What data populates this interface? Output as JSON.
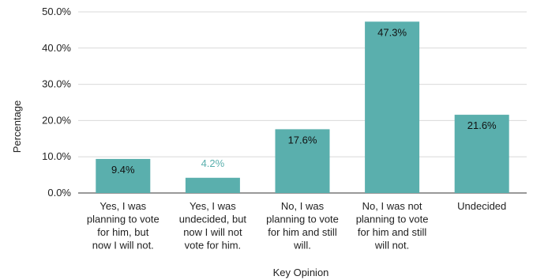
{
  "chart_data": {
    "type": "bar",
    "title": "",
    "xlabel": "Key Opinion",
    "ylabel": "Percentage",
    "ylim": [
      0,
      50
    ],
    "yticks": [
      "0.0%",
      "10.0%",
      "20.0%",
      "30.0%",
      "40.0%",
      "50.0%"
    ],
    "grid": true,
    "legend": "none",
    "categories": [
      "Yes, I was planning to vote for him, but now I will not.",
      "Yes, I was undecided, but now I will not vote for him.",
      "No, I was planning to vote for him and still will.",
      "No, I was not planning to vote for him and still will not.",
      "Undecided"
    ],
    "category_lines": [
      [
        "Yes, I was",
        "planning to vote",
        "for him, but",
        "now I will not."
      ],
      [
        "Yes, I was",
        "undecided, but",
        "now I will not",
        "vote for him."
      ],
      [
        "No, I was",
        "planning to vote",
        "for him and still",
        "will."
      ],
      [
        "No, I was not",
        "planning to vote",
        "for him and still",
        "will not."
      ],
      [
        "Undecided"
      ]
    ],
    "values": [
      9.4,
      4.2,
      17.6,
      47.3,
      21.6
    ],
    "data_labels": [
      "9.4%",
      "4.2%",
      "17.6%",
      "47.3%",
      "21.6%"
    ],
    "bar_color": "#5aafad",
    "outside_label_color": "#5aafad",
    "grid_color": "#d9d9d9"
  }
}
